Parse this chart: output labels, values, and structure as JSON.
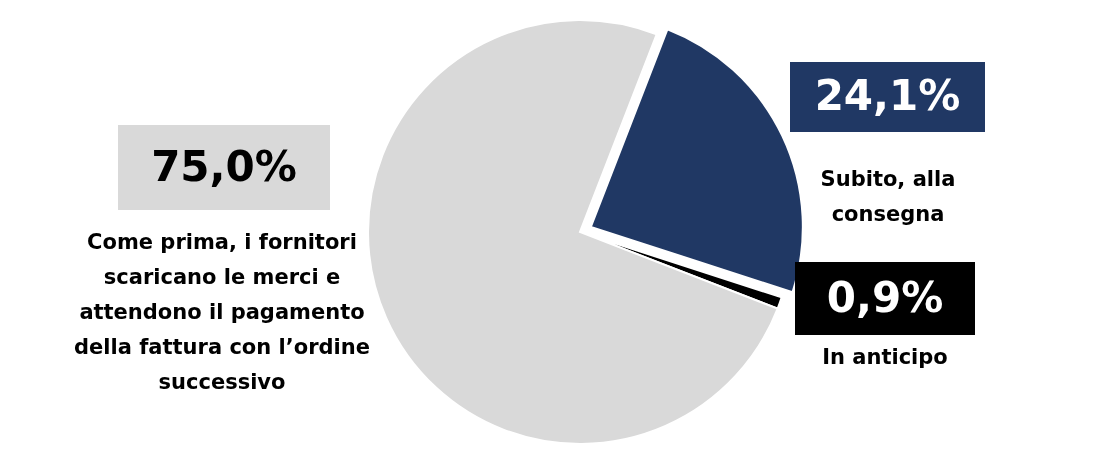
{
  "chart_data": {
    "type": "pie",
    "categories": [
      "Subito, alla consegna",
      "In anticipo",
      "Come prima, i fornitori scaricano le merci e attendono il pagamento della fattura con l’ordine successivo"
    ],
    "values": [
      24.1,
      0.9,
      75.0
    ],
    "colors": [
      "#203864",
      "#000000",
      "#d9d9d9"
    ],
    "value_labels": [
      "24,1%",
      "0,9%",
      "75,0%"
    ]
  }
}
